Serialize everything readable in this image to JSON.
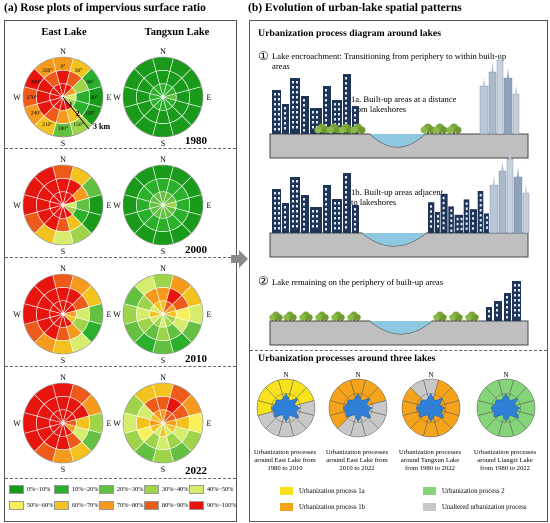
{
  "left": {
    "title": "(a) Rose plots of impervious surface ratio",
    "col_east": "East Lake",
    "col_tangxun": "Tangxun Lake",
    "years": [
      "1980",
      "2000",
      "2010",
      "2022"
    ],
    "dirs": {
      "n": "N",
      "s": "S",
      "e": "E",
      "w": "W"
    },
    "angles": [
      "0°",
      "30°",
      "60°",
      "90°",
      "120°",
      "150°",
      "180°",
      "210°",
      "240°",
      "270°",
      "300°",
      "330°"
    ],
    "rings": [
      "1",
      "2",
      "3 km"
    ],
    "legend": [
      {
        "label": "0%~10%",
        "color": "#1a9a1a"
      },
      {
        "label": "10%~20%",
        "color": "#2ab02a"
      },
      {
        "label": "20%~30%",
        "color": "#64c040"
      },
      {
        "label": "30%~40%",
        "color": "#9fd34a"
      },
      {
        "label": "40%~50%",
        "color": "#d6ec6c"
      },
      {
        "label": "50%~60%",
        "color": "#f8f05a"
      },
      {
        "label": "60%~70%",
        "color": "#f3c21f"
      },
      {
        "label": "70%~80%",
        "color": "#f59a1c"
      },
      {
        "label": "80%~90%",
        "color": "#ee5a1a"
      },
      {
        "label": "90%~100%",
        "color": "#e8140e"
      }
    ]
  },
  "right": {
    "title": "(b) Evolution of urban-lake spatial patterns",
    "sub1": "Urbanization process diagram around lakes",
    "s1": "Lake encroachment: Transitioning from periphery to within built-up areas",
    "s1_num": "①",
    "s1a": "1a. Built-up areas at a distance from lakeshores",
    "s1b": "1b. Built-up areas adjacent to lakeshores",
    "s2_num": "②",
    "s2": "Lake remaining on the periphery of built-up areas",
    "sub2": "Urbanization processes around three lakes",
    "rose_n": "N",
    "captions": [
      "Urbanization processes around East Lake from 1980 to 2010",
      "Urbanization processes around East Lake from 2010 to 2022",
      "Urbanization processes around Tangxun Lake from 1980 to 2022",
      "Urbanization processes around Liangzi Lake from 1980 to 2022"
    ],
    "legend": [
      {
        "label": "Urbanization process 1a",
        "color": "#f7e21c"
      },
      {
        "label": "Urbanization process 2",
        "color": "#86d47a"
      },
      {
        "label": "Urbanization process 1b",
        "color": "#f5a31a"
      },
      {
        "label": "Unaltered urbanization process",
        "color": "#c8c8c8"
      }
    ]
  }
}
